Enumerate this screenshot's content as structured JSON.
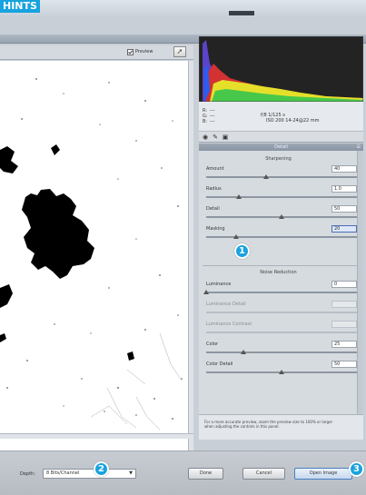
{
  "header": {
    "tag": "HINTS"
  },
  "preview": {
    "checkbox_label": "Preview",
    "checked": true,
    "fullscreen_icon": "fullscreen-icon"
  },
  "readout": {
    "rgb_labels": [
      "R:",
      "G:",
      "B:"
    ],
    "rgb_values": [
      "---",
      "---",
      "---"
    ],
    "camera_line1": "f/8   1/125 s",
    "camera_line2": "ISO 200   14-24@22 mm"
  },
  "panel": {
    "tab_icons": [
      "aperture-icon",
      "brush-icon",
      "crop-icon"
    ],
    "title": "Detail",
    "menu_icon": "panel-menu-icon",
    "sharpening": {
      "heading": "Sharpening",
      "rows": [
        {
          "label": "Amount",
          "value": "40"
        },
        {
          "label": "Radius",
          "value": "1.0"
        },
        {
          "label": "Detail",
          "value": "50"
        },
        {
          "label": "Masking",
          "value": "20"
        }
      ]
    },
    "noise": {
      "heading": "Noise Reduction",
      "rows": [
        {
          "label": "Luminance",
          "value": "0"
        },
        {
          "label": "Luminance Detail",
          "value": ""
        },
        {
          "label": "Luminance Contrast",
          "value": ""
        },
        {
          "label": "Color",
          "value": "25"
        },
        {
          "label": "Color Detail",
          "value": "50"
        }
      ]
    },
    "note": "For a more accurate preview, zoom the preview size to 100% or larger when adjusting the controls in this panel."
  },
  "bottom": {
    "depth_label": "Depth:",
    "depth_value": "8 Bits/Channel",
    "buttons": {
      "done": "Done",
      "cancel": "Cancel",
      "open": "Open Image"
    }
  },
  "callouts": [
    "1",
    "2",
    "3"
  ],
  "colors": {
    "accent": "#1aa2df",
    "panel": "#d6dbe0",
    "histogram_bg": "#232323"
  }
}
